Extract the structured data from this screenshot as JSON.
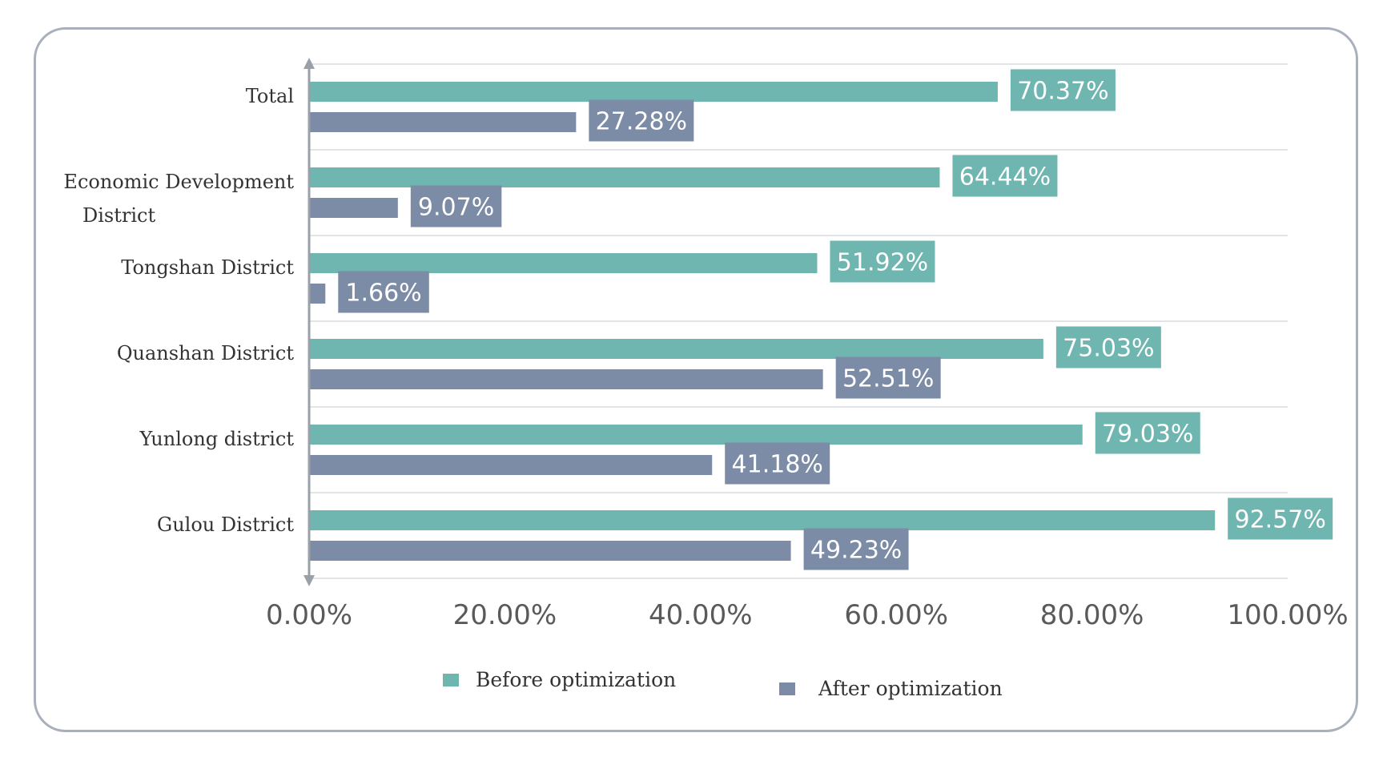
{
  "chart_data": {
    "type": "bar",
    "orientation": "horizontal",
    "title": "",
    "xlabel": "",
    "ylabel": "",
    "xlim": [
      0,
      100
    ],
    "categories": [
      "Total",
      "Economic Development District",
      "Tongshan District",
      "Quanshan District",
      "Yunlong district",
      "Gulou District"
    ],
    "series": [
      {
        "name": "Before optimization",
        "color": "#6fb5b0",
        "values": [
          70.37,
          64.44,
          51.92,
          75.03,
          79.03,
          92.57
        ],
        "labels": [
          "70.37%",
          "64.44%",
          "51.92%",
          "75.03%",
          "79.03%",
          "92.57%"
        ]
      },
      {
        "name": "After optimization",
        "color": "#7d8ca6",
        "values": [
          27.28,
          9.07,
          1.66,
          52.51,
          41.18,
          49.23
        ],
        "labels": [
          "27.28%",
          "9.07%",
          "1.66%",
          "52.51%",
          "41.18%",
          "49.23%"
        ]
      }
    ],
    "x_ticks": [
      0,
      20,
      40,
      60,
      80,
      100
    ],
    "x_tick_labels": [
      "0.00%",
      "20.00%",
      "40.00%",
      "60.00%",
      "80.00%",
      "100.00%"
    ],
    "grid": "horizontal",
    "legend": {
      "position": "bottom",
      "entries": [
        "Before optimization",
        "After optimization"
      ]
    }
  }
}
